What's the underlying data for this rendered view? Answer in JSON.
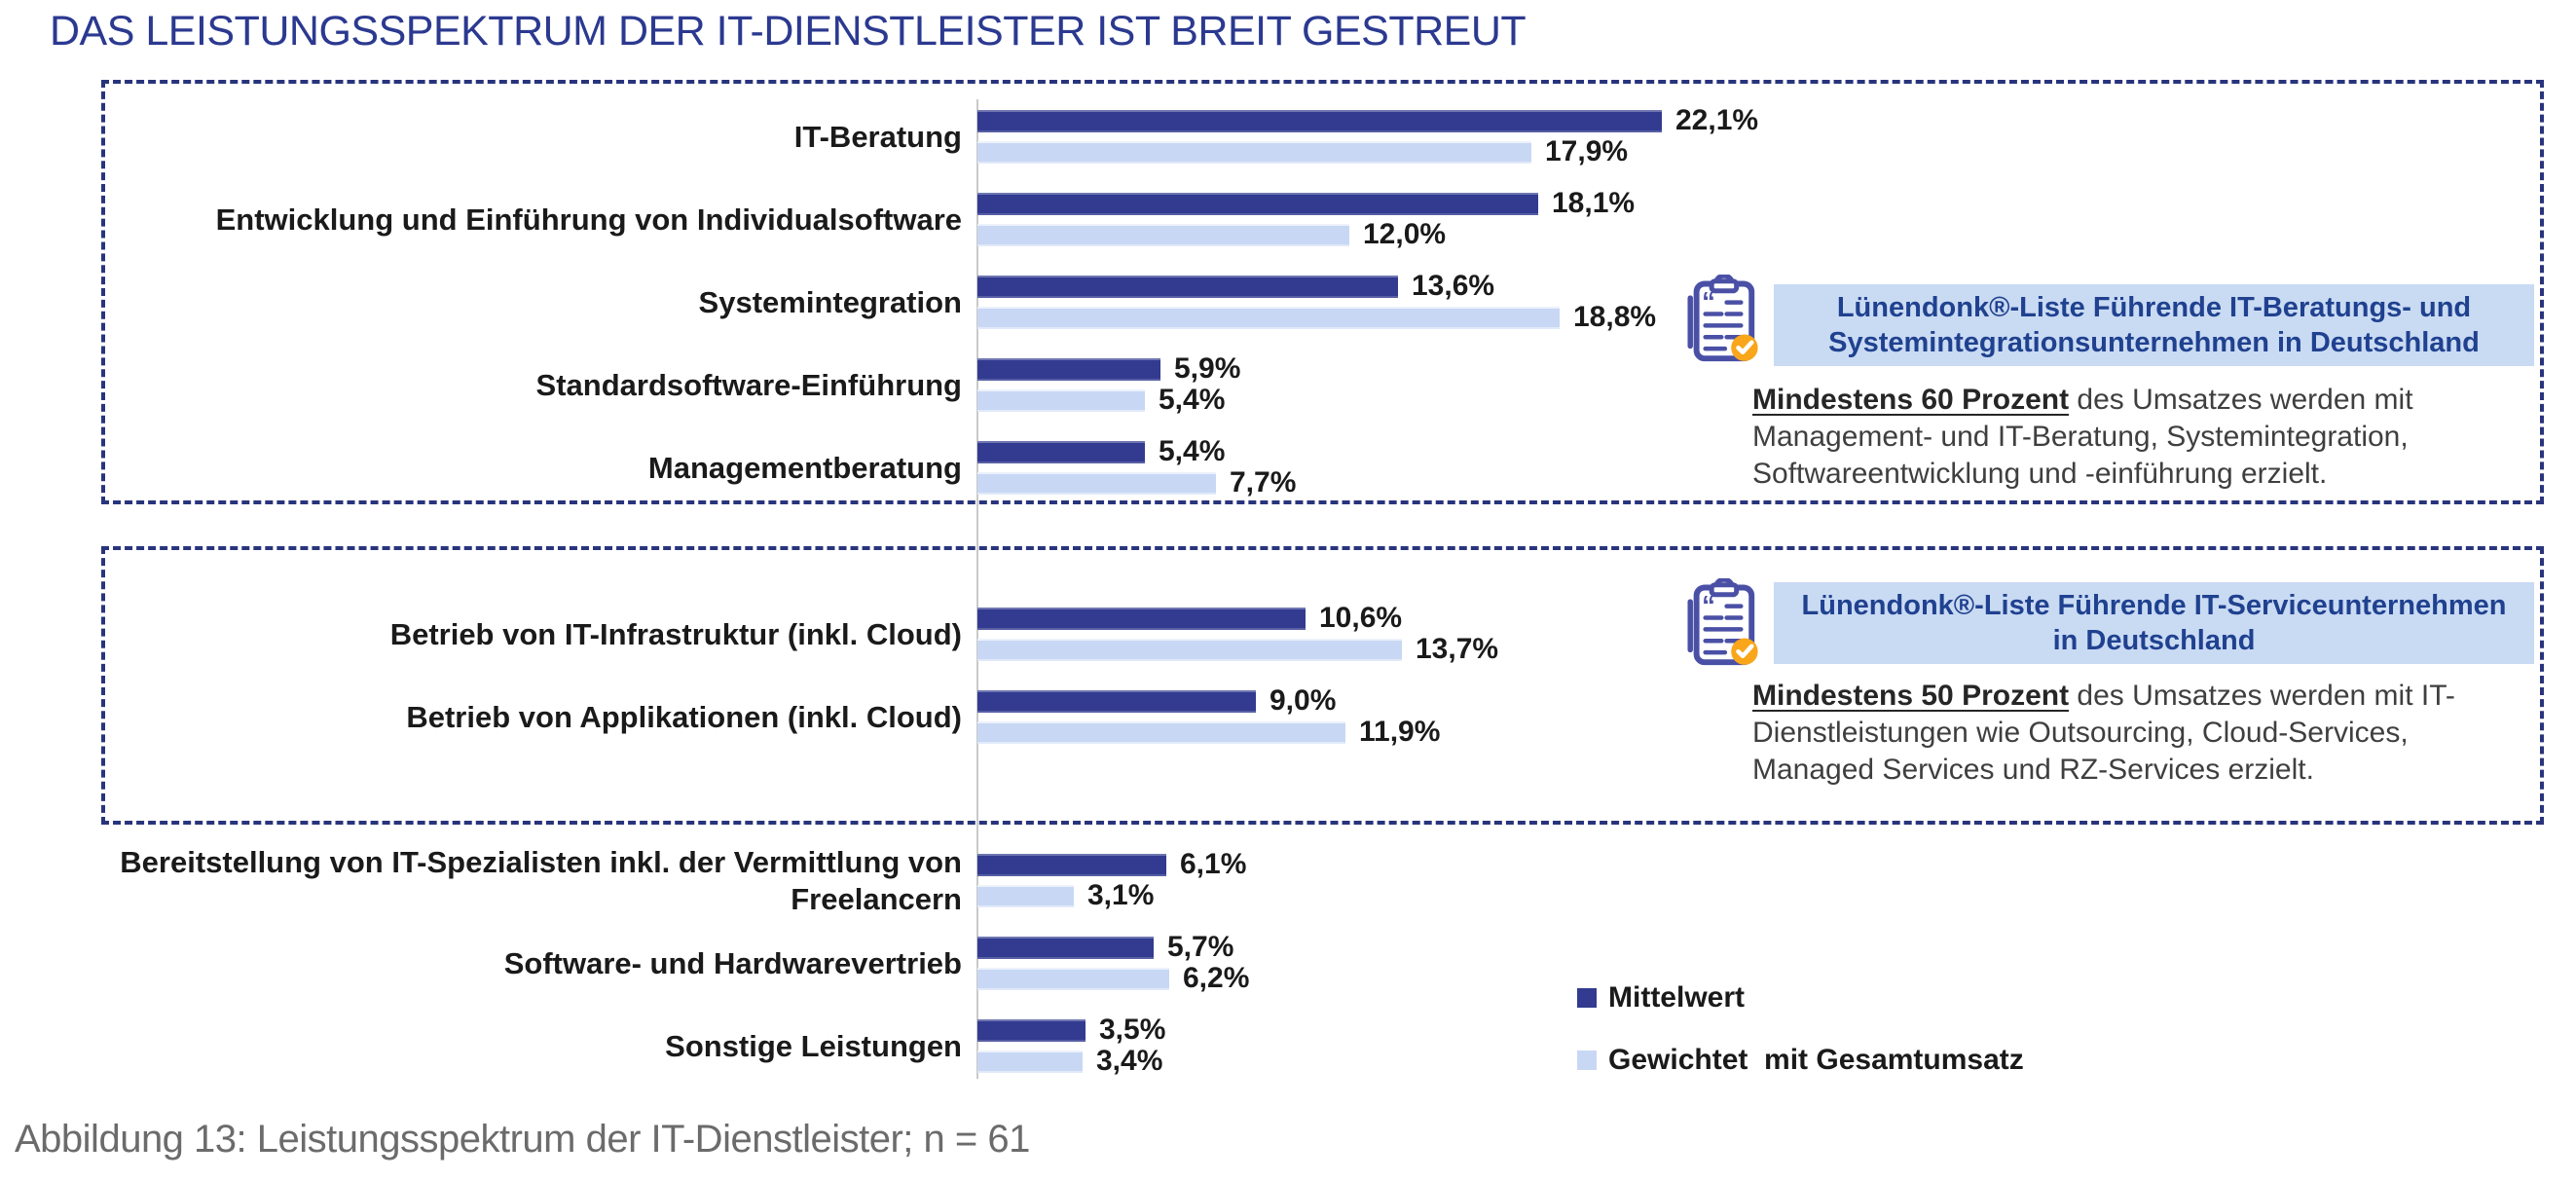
{
  "title": "DAS LEISTUNGSSPEKTRUM DER IT-DIENSTLEISTER IST BREIT GESTREUT",
  "caption": "Abbildung 13: Leistungsspektrum der IT-Dienstleister; n = 61",
  "legend": {
    "items": [
      {
        "label": "Mittelwert",
        "color": "#323b90"
      },
      {
        "label": "Gewichtet  mit Gesamtumsatz",
        "color": "#c8d8f4"
      }
    ]
  },
  "colors": {
    "title_text": "#2b3990",
    "bar_dark": "#323b90",
    "bar_light": "#c8d8f4",
    "dashed_box_border": "#28347c",
    "axis_line": "#c9c9c9",
    "annotation_band_bg": "#c9daf3",
    "annotation_band_text": "#1f418f",
    "annotation_body_text": "#3f3f3f",
    "annotation_lead_text": "#262626",
    "caption_text": "#6b6b6b",
    "icon_stroke": "#4a50a5",
    "icon_badge_orange": "#f9a61a"
  },
  "chart_data": {
    "type": "bar",
    "orientation": "horizontal",
    "value_unit": "percent",
    "decimal_separator": ",",
    "xlim": [
      0,
      25
    ],
    "grid": false,
    "legend_position": "bottom-right",
    "categories": [
      "IT-Beratung",
      "Entwicklung und Einführung von Individualsoftware",
      "Systemintegration",
      "Standardsoftware-Einführung",
      "Managementberatung",
      "Betrieb von IT-Infrastruktur (inkl. Cloud)",
      "Betrieb von Applikationen (inkl. Cloud)",
      "Bereitstellung von IT-Spezialisten inkl. der Vermittlung von Freelancern",
      "Software- und Hardwarevertrieb",
      "Sonstige Leistungen"
    ],
    "series": [
      {
        "name": "Mittelwert",
        "color": "#323b90",
        "values": [
          22.1,
          18.1,
          13.6,
          5.9,
          5.4,
          10.6,
          9.0,
          6.1,
          5.7,
          3.5
        ]
      },
      {
        "name": "Gewichtet  mit Gesamtumsatz",
        "color": "#c8d8f4",
        "values": [
          17.9,
          12.0,
          18.8,
          5.4,
          7.7,
          13.7,
          11.9,
          3.1,
          6.2,
          3.4
        ]
      }
    ],
    "groups": [
      {
        "start": 0,
        "count": 5,
        "boxed": true,
        "annotation": {
          "icon": "clipboard-check-icon",
          "title": "Lünendonk®-Liste Führende IT-Beratungs- und Systemintegrationsunternehmen in Deutschland",
          "lead": "Mindestens 60 Prozent",
          "body": "des Umsatzes werden mit Management- und IT-Beratung, Systemintegration, Softwareentwicklung und -einführung erzielt."
        }
      },
      {
        "start": 5,
        "count": 2,
        "boxed": true,
        "annotation": {
          "icon": "clipboard-check-icon",
          "title": "Lünendonk®-Liste Führende IT-Serviceunternehmen in Deutschland",
          "lead": "Mindestens 50 Prozent",
          "body": "des Umsatzes werden mit IT-Dienstleistungen wie Outsourcing, Cloud-Services, Managed Services und RZ-Services erzielt."
        }
      },
      {
        "start": 7,
        "count": 3,
        "boxed": false,
        "annotation": null
      }
    ]
  }
}
